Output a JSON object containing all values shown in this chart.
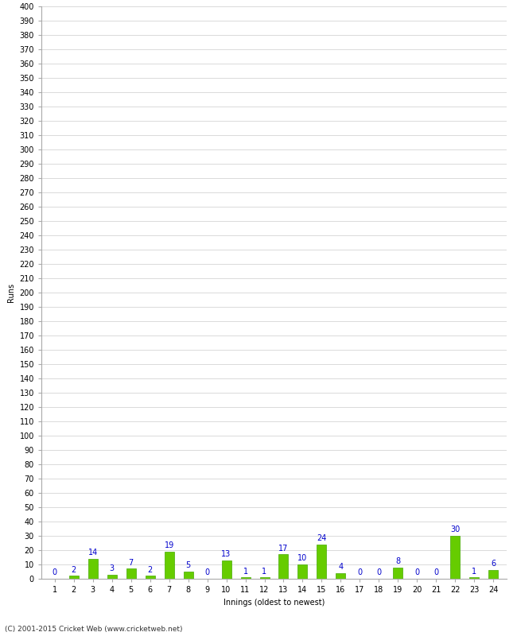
{
  "title": "",
  "xlabel": "Innings (oldest to newest)",
  "ylabel": "Runs",
  "categories": [
    1,
    2,
    3,
    4,
    5,
    6,
    7,
    8,
    9,
    10,
    11,
    12,
    13,
    14,
    15,
    16,
    17,
    18,
    19,
    20,
    21,
    22,
    23,
    24
  ],
  "values": [
    0,
    2,
    14,
    3,
    7,
    2,
    19,
    5,
    0,
    13,
    1,
    1,
    17,
    10,
    24,
    4,
    0,
    0,
    8,
    0,
    0,
    30,
    1,
    6
  ],
  "bar_color": "#66cc00",
  "bar_edge_color": "#44aa00",
  "label_color": "#0000cc",
  "background_color": "#ffffff",
  "grid_color": "#cccccc",
  "ylim": [
    0,
    400
  ],
  "yticks": [
    0,
    10,
    20,
    30,
    40,
    50,
    60,
    70,
    80,
    90,
    100,
    110,
    120,
    130,
    140,
    150,
    160,
    170,
    180,
    190,
    200,
    210,
    220,
    230,
    240,
    250,
    260,
    270,
    280,
    290,
    300,
    310,
    320,
    330,
    340,
    350,
    360,
    370,
    380,
    390,
    400
  ],
  "footer": "(C) 2001-2015 Cricket Web (www.cricketweb.net)",
  "label_fontsize": 7,
  "axis_fontsize": 7,
  "ylabel_fontsize": 7,
  "xlabel_fontsize": 7,
  "bar_width": 0.5
}
